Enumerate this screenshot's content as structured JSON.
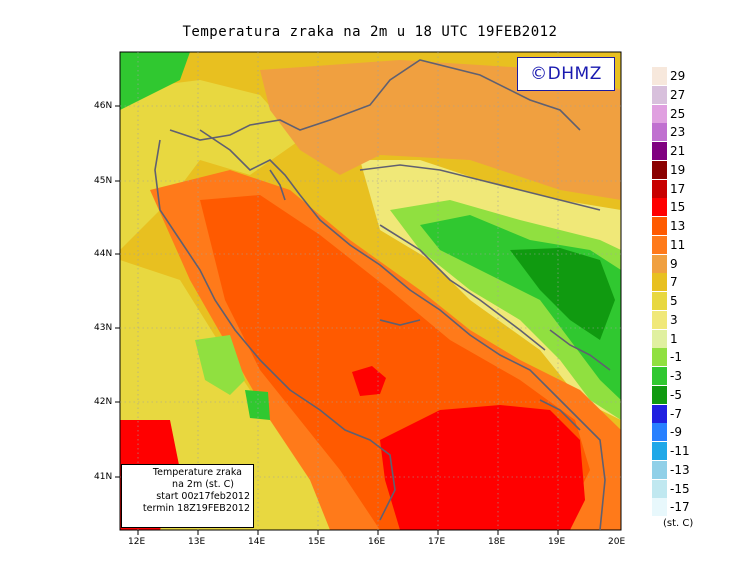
{
  "title": "Temperatura zraka na 2m u 18 UTC 19FEB2012",
  "logo": "©DHMZ",
  "info": {
    "line1": "Temperature zraka",
    "line2": "na 2m (st. C)",
    "line3": "start 00z17feb2012",
    "line4": "termin 18Z19FEB2012"
  },
  "axes": {
    "lat_ticks": [
      "46N",
      "45N",
      "44N",
      "43N",
      "42N",
      "41N"
    ],
    "lon_ticks": [
      "12E",
      "13E",
      "14E",
      "15E",
      "16E",
      "17E",
      "18E",
      "19E",
      "20E"
    ]
  },
  "colorbar": {
    "labels": [
      "29",
      "27",
      "25",
      "23",
      "21",
      "19",
      "17",
      "15",
      "13",
      "11",
      "9",
      "7",
      "5",
      "3",
      "1",
      "-1",
      "-3",
      "-5",
      "-7",
      "-9",
      "-11",
      "-13",
      "-15",
      "-17"
    ],
    "colors": [
      "#f7e8dc",
      "#d8c0dc",
      "#e0a0e0",
      "#c070d0",
      "#800080",
      "#8b0000",
      "#c80000",
      "#ff0000",
      "#ff5a00",
      "#ff7a1a",
      "#f0a040",
      "#e8c020",
      "#e8d840",
      "#f0e878",
      "#e0f0a0",
      "#90e040",
      "#30c830",
      "#109a10",
      "#2020e0",
      "#2880ff",
      "#20a8e8",
      "#90d0e8",
      "#c0e8f0",
      "#e8f8fc"
    ],
    "unit": "(st. C)"
  }
}
